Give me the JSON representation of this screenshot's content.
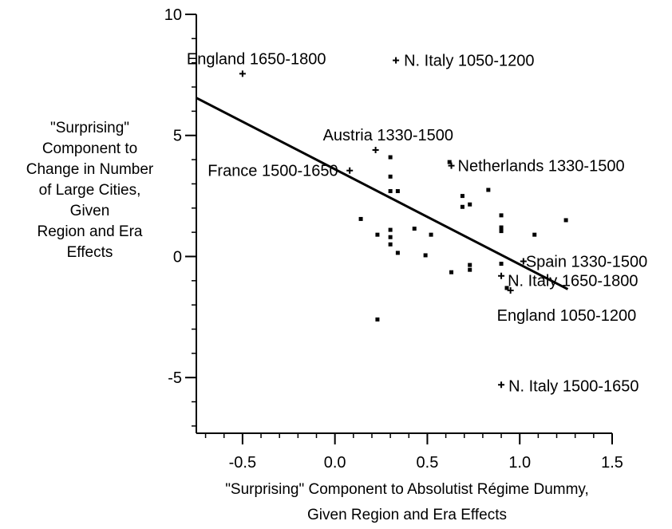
{
  "chart_data": {
    "type": "scatter",
    "title": "",
    "xlabel_lines": [
      "\"Surprising\" Component to Absolutist Régime Dummy,",
      "Given Region and Era Effects"
    ],
    "ylabel_lines": [
      "\"Surprising\"",
      "Component to",
      "Change in Number",
      "of Large Cities,",
      "Given",
      "Region and Era",
      "Effects"
    ],
    "xlim": [
      -0.75,
      1.5
    ],
    "ylim": [
      -7.3,
      10
    ],
    "x_ticks": [
      -0.5,
      0.0,
      0.5,
      1.0,
      1.5
    ],
    "x_tick_labels": [
      "-0.5",
      "0.0",
      "0.5",
      "1.0",
      "1.5"
    ],
    "y_ticks": [
      -5,
      0,
      5,
      10
    ],
    "y_tick_labels": [
      "-5",
      "0",
      "5",
      "10"
    ],
    "grid": false,
    "fit_line": {
      "x": [
        -0.75,
        1.26
      ],
      "y": [
        6.55,
        -1.35
      ]
    },
    "labeled_points": [
      {
        "label": "England 1650-1800",
        "x": -0.5,
        "y": 7.55
      },
      {
        "label": "N. Italy 1050-1200",
        "x": 0.33,
        "y": 8.1
      },
      {
        "label": "Austria 1330-1500",
        "x": 0.22,
        "y": 4.4
      },
      {
        "label": "France 1500-1650",
        "x": 0.08,
        "y": 3.55
      },
      {
        "label": "Netherlands 1330-1500",
        "x": 0.63,
        "y": 3.75
      },
      {
        "label": "Spain 1330-1500",
        "x": 1.02,
        "y": -0.2
      },
      {
        "label": "N. Italy 1650-1800",
        "x": 0.9,
        "y": -0.8
      },
      {
        "label": "England 1050-1200",
        "x": 0.95,
        "y": -1.4
      },
      {
        "label": "N. Italy 1500-1650",
        "x": 0.9,
        "y": -5.3
      }
    ],
    "points": [
      {
        "x": 0.3,
        "y": 4.1
      },
      {
        "x": 0.3,
        "y": 3.3
      },
      {
        "x": 0.3,
        "y": 2.7
      },
      {
        "x": 0.34,
        "y": 2.7
      },
      {
        "x": 0.14,
        "y": 1.55
      },
      {
        "x": 0.23,
        "y": 0.9
      },
      {
        "x": 0.3,
        "y": 1.1
      },
      {
        "x": 0.3,
        "y": 0.8
      },
      {
        "x": 0.3,
        "y": 0.5
      },
      {
        "x": 0.34,
        "y": 0.15
      },
      {
        "x": 0.43,
        "y": 1.15
      },
      {
        "x": 0.49,
        "y": 0.05
      },
      {
        "x": 0.52,
        "y": 0.9
      },
      {
        "x": 0.23,
        "y": -2.6
      },
      {
        "x": 0.62,
        "y": 3.9
      },
      {
        "x": 0.69,
        "y": 2.5
      },
      {
        "x": 0.69,
        "y": 2.05
      },
      {
        "x": 0.73,
        "y": 2.15
      },
      {
        "x": 0.73,
        "y": -0.35
      },
      {
        "x": 0.73,
        "y": -0.55
      },
      {
        "x": 0.63,
        "y": -0.65
      },
      {
        "x": 0.83,
        "y": 2.75
      },
      {
        "x": 0.9,
        "y": 1.7
      },
      {
        "x": 0.9,
        "y": 1.2
      },
      {
        "x": 0.9,
        "y": 1.05
      },
      {
        "x": 0.9,
        "y": -0.3
      },
      {
        "x": 0.93,
        "y": -1.3
      },
      {
        "x": 1.08,
        "y": 0.9
      },
      {
        "x": 1.25,
        "y": 1.5
      }
    ]
  }
}
